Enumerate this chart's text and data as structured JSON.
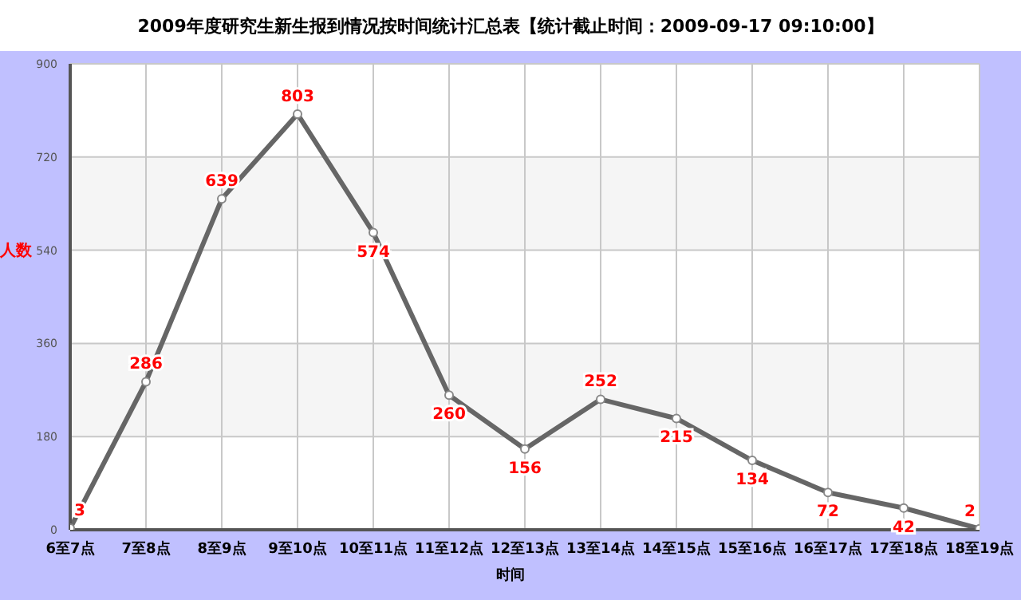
{
  "chart_data": {
    "type": "line",
    "title": "2009年度研究生新生报到情况按时间统计汇总表【统计截止时间：2009-09-17 09:10:00】",
    "xlabel": "时间",
    "ylabel": "人数",
    "categories": [
      "6至7点",
      "7至8点",
      "8至9点",
      "9至10点",
      "10至11点",
      "11至12点",
      "12至13点",
      "13至14点",
      "14至15点",
      "15至16点",
      "16至17点",
      "17至18点",
      "18至19点"
    ],
    "series": [
      {
        "color": "#666666",
        "values": [
          3,
          286,
          639,
          803,
          574,
          260,
          156,
          252,
          215,
          134,
          72,
          42,
          2
        ]
      }
    ],
    "ylim": [
      0,
      900
    ],
    "yticks": [
      0,
      180,
      360,
      540,
      720,
      900
    ],
    "grid": true,
    "legend": false,
    "marker": "circle",
    "line_style": "solid",
    "data_labels": true
  }
}
